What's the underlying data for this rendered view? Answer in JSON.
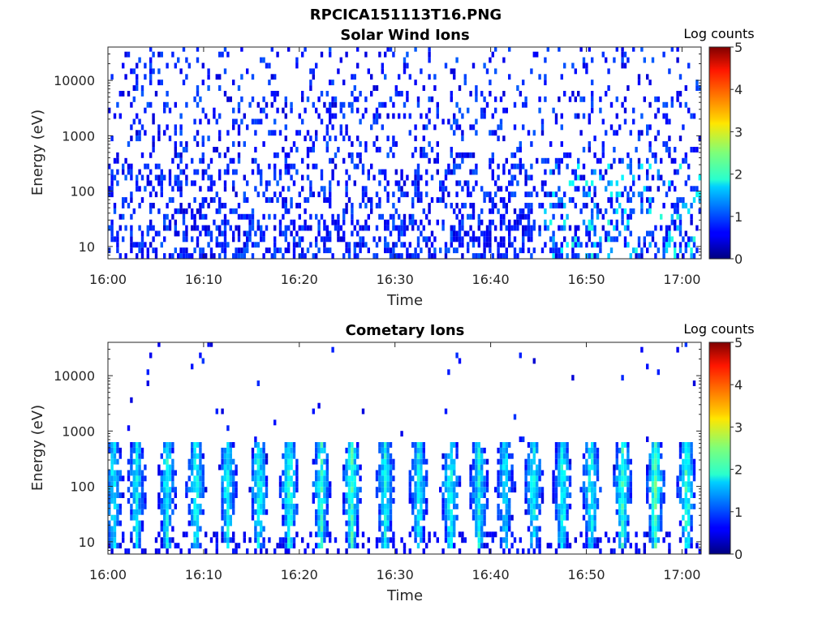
{
  "figure": {
    "title": "RPCICA151113T16.PNG"
  },
  "chart_data": [
    {
      "type": "heatmap",
      "title": "Solar Wind Ions",
      "xlabel": "Time",
      "ylabel": "Energy (eV)",
      "x_range": [
        "16:00",
        "17:02"
      ],
      "xticks": [
        "16:00",
        "16:10",
        "16:20",
        "16:30",
        "16:40",
        "16:50",
        "17:00"
      ],
      "y_scale": "log",
      "ylim": [
        6,
        40000
      ],
      "yticks": [
        10,
        100,
        1000,
        10000
      ],
      "ytick_labels": [
        "10",
        "100",
        "1000",
        "10000"
      ],
      "colorbar": {
        "label": "Log counts",
        "range": [
          0,
          5
        ],
        "ticks": [
          "0",
          "1",
          "2",
          "3",
          "4",
          "5"
        ]
      },
      "pattern": "sparse",
      "bursts": []
    },
    {
      "type": "heatmap",
      "title": "Cometary Ions",
      "xlabel": "Time",
      "ylabel": "Energy (eV)",
      "x_range": [
        "16:00",
        "17:02"
      ],
      "xticks": [
        "16:00",
        "16:10",
        "16:20",
        "16:30",
        "16:40",
        "16:50",
        "17:00"
      ],
      "y_scale": "log",
      "ylim": [
        6,
        40000
      ],
      "yticks": [
        10,
        100,
        1000,
        10000
      ],
      "ytick_labels": [
        "10",
        "100",
        "1000",
        "10000"
      ],
      "colorbar": {
        "label": "Log counts",
        "range": [
          0,
          5
        ],
        "ticks": [
          "0",
          "1",
          "2",
          "3",
          "4",
          "5"
        ]
      },
      "pattern": "bursts",
      "bursts": [
        {
          "time_min": 0.6,
          "peak_log_counts": 1.9
        },
        {
          "time_min": 3.0,
          "peak_log_counts": 1.8
        },
        {
          "time_min": 6.2,
          "peak_log_counts": 1.9
        },
        {
          "time_min": 9.2,
          "peak_log_counts": 2.0
        },
        {
          "time_min": 12.5,
          "peak_log_counts": 1.9
        },
        {
          "time_min": 15.8,
          "peak_log_counts": 2.0
        },
        {
          "time_min": 19.0,
          "peak_log_counts": 2.1
        },
        {
          "time_min": 22.3,
          "peak_log_counts": 2.1
        },
        {
          "time_min": 25.5,
          "peak_log_counts": 2.2
        },
        {
          "time_min": 29.0,
          "peak_log_counts": 2.0
        },
        {
          "time_min": 32.5,
          "peak_log_counts": 1.9
        },
        {
          "time_min": 35.8,
          "peak_log_counts": 2.0
        },
        {
          "time_min": 38.8,
          "peak_log_counts": 1.9
        },
        {
          "time_min": 41.5,
          "peak_log_counts": 1.8
        },
        {
          "time_min": 44.5,
          "peak_log_counts": 1.9
        },
        {
          "time_min": 47.5,
          "peak_log_counts": 2.0
        },
        {
          "time_min": 50.5,
          "peak_log_counts": 2.0
        },
        {
          "time_min": 53.8,
          "peak_log_counts": 2.1
        },
        {
          "time_min": 57.2,
          "peak_log_counts": 2.3
        },
        {
          "time_min": 60.5,
          "peak_log_counts": 2.2
        }
      ]
    }
  ]
}
